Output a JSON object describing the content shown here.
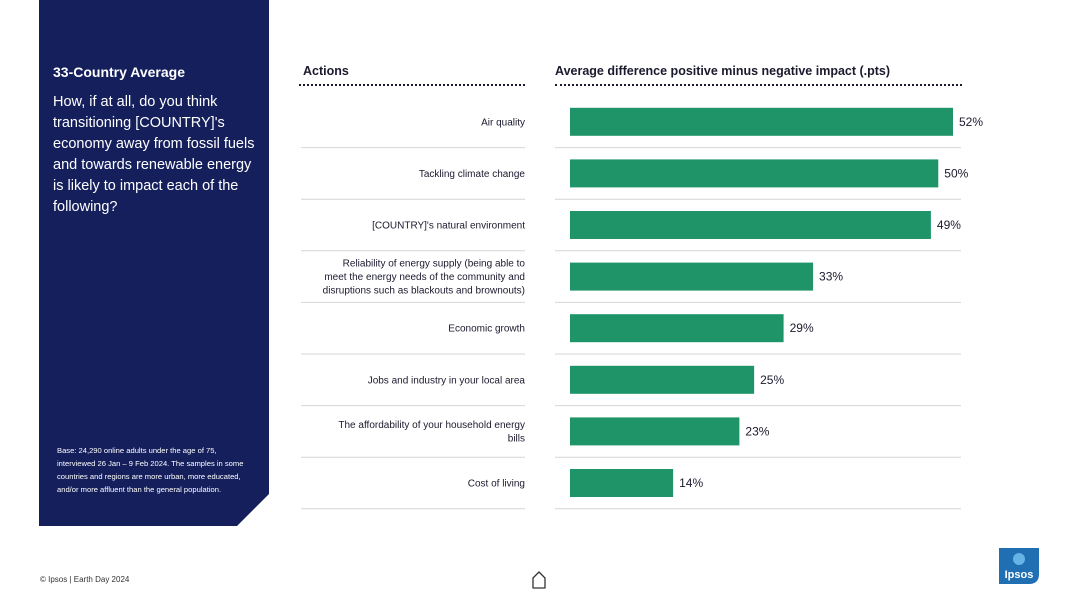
{
  "panel": {
    "title": "33-Country Average",
    "question": "How, if at all, do you think transitioning [COUNTRY]'s economy away from fossil fuels and towards renewable energy is likely to impact each of the following?",
    "base": "Base: 24,290 online adults under the age of 75, interviewed 26 Jan – 9 Feb 2024. The samples in some countries and regions are more urban, more educated, and/or more affluent than the general population."
  },
  "headers": {
    "actions": "Actions",
    "metric": "Average difference positive minus negative impact (.pts)"
  },
  "chart_data": {
    "type": "bar",
    "orientation": "horizontal",
    "categories": [
      "Air quality",
      "Tackling climate change",
      "[COUNTRY]'s natural environment",
      "Reliability of energy supply (being able to meet the energy needs of the community and disruptions such as blackouts and brownouts)",
      "Economic growth",
      "Jobs and industry in your local area",
      "The affordability of your household energy bills",
      "Cost of living"
    ],
    "category_lines": [
      [
        "Air quality"
      ],
      [
        "Tackling climate change"
      ],
      [
        "[COUNTRY]'s natural environment"
      ],
      [
        "Reliability of energy supply (being able to",
        "meet the energy needs of the community and",
        "disruptions such as blackouts and brownouts)"
      ],
      [
        "Economic growth"
      ],
      [
        "Jobs and industry in your local area"
      ],
      [
        "The affordability of your household energy",
        "bills"
      ],
      [
        "Cost of living"
      ]
    ],
    "values": [
      52,
      50,
      49,
      33,
      29,
      25,
      23,
      14
    ],
    "labels": [
      "52%",
      "50%",
      "49%",
      "33%",
      "29%",
      "25%",
      "23%",
      "14%"
    ],
    "xlim": [
      0,
      52
    ],
    "bar_color": "#1f9468",
    "title": "Average difference positive minus negative impact (.pts)",
    "xlabel": "",
    "ylabel": "Actions"
  },
  "footer": {
    "copyright": "© Ipsos | Earth Day 2024",
    "logo_text": "Ipsos"
  }
}
